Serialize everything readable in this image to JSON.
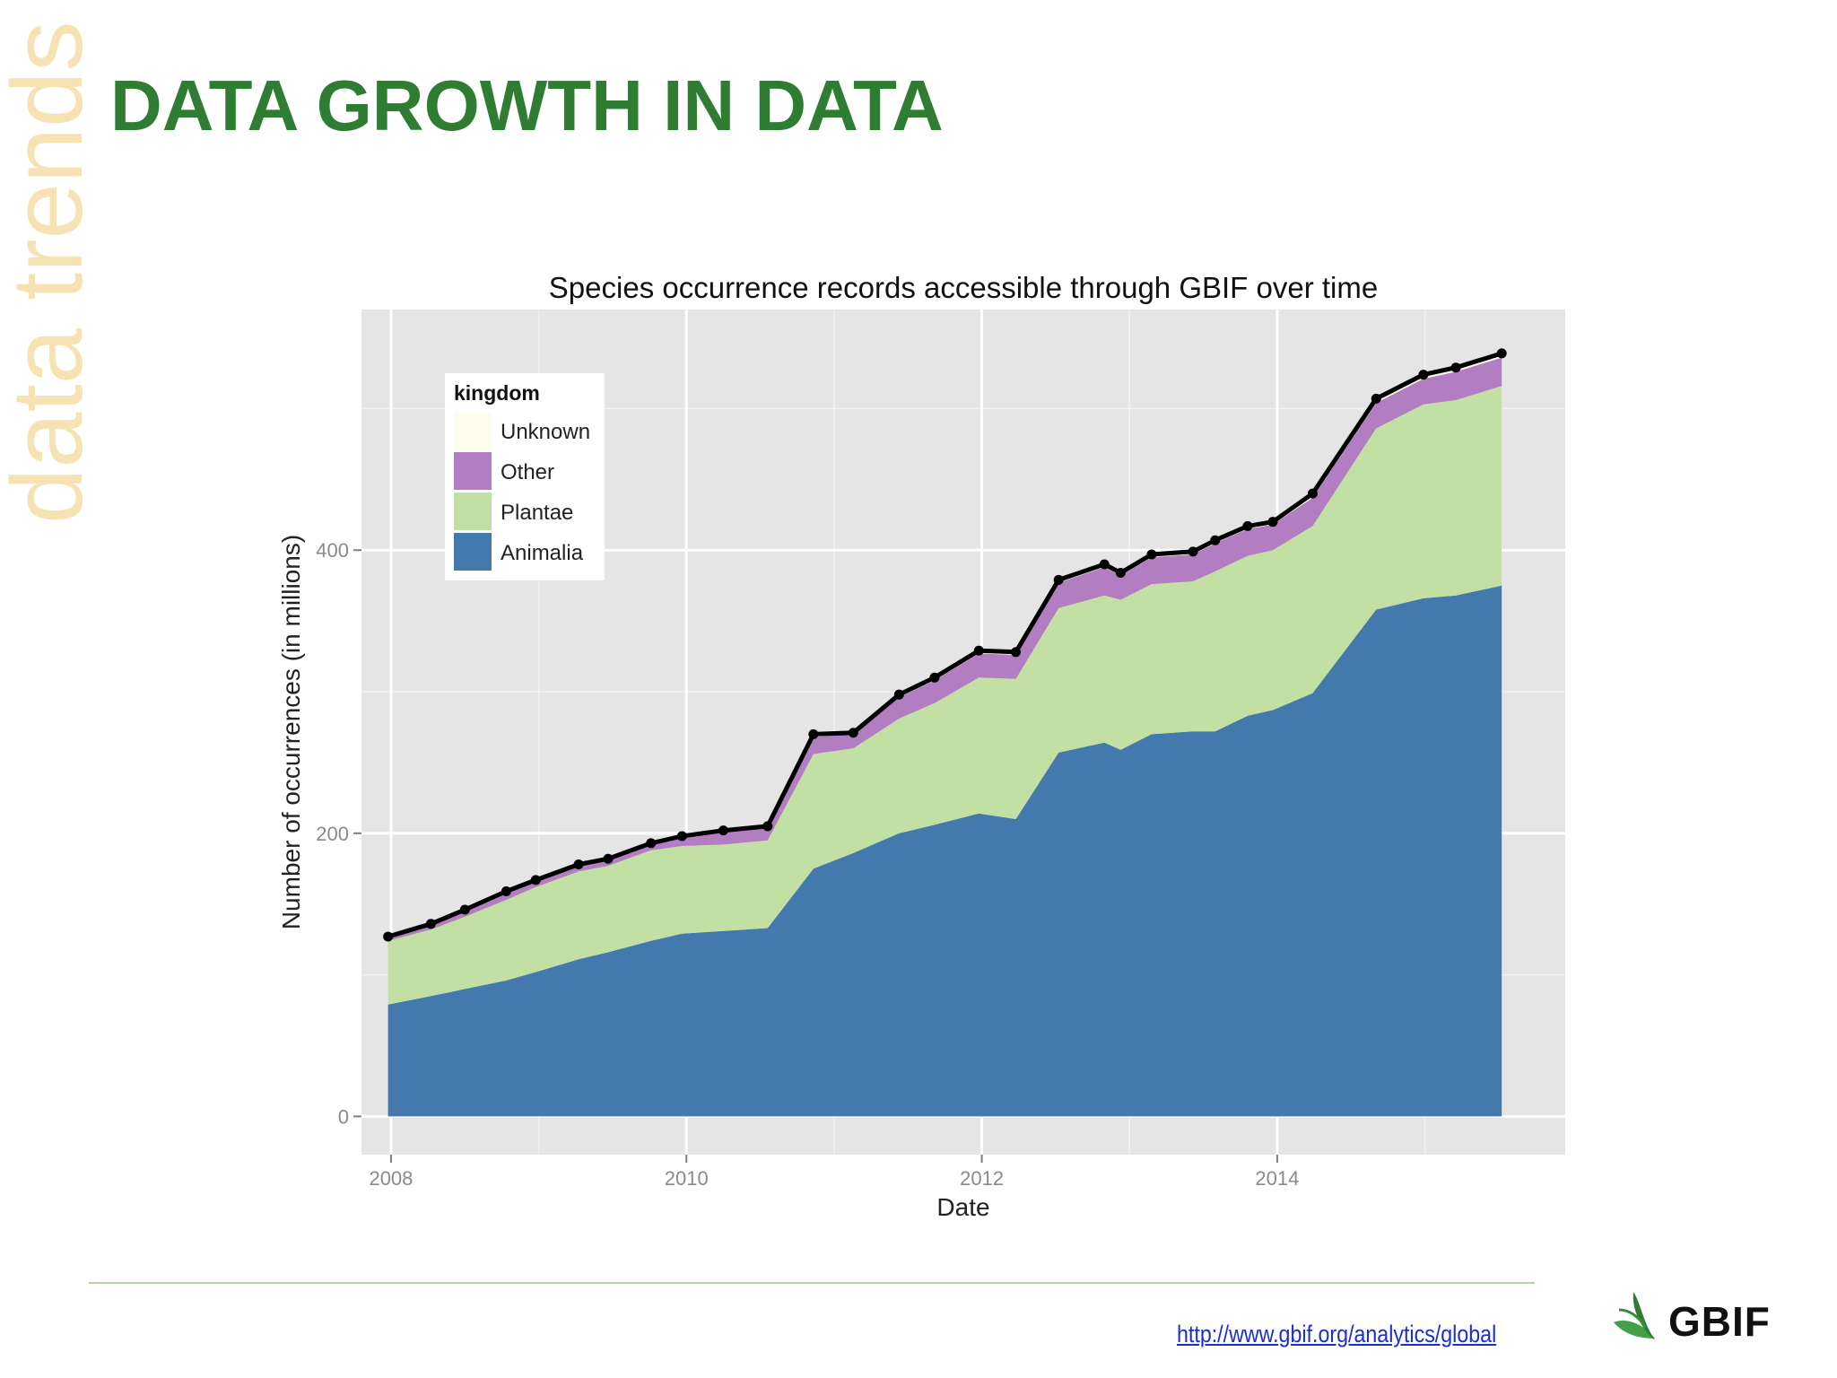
{
  "slide": {
    "side_label": "data trends",
    "title": "DATA GROWTH IN DATA",
    "source_link": "http://www.gbif.org/analytics/global",
    "logo_text": "GBIF"
  },
  "colors": {
    "title": "#2e7d32",
    "side_label": "#f7e2b3",
    "panel_bg": "#e5e5e5",
    "animalia": "#4479ad",
    "plantae": "#c2e0a3",
    "other": "#b27ec1",
    "unknown": "#fdfdee",
    "total_line": "#000000",
    "logo_leaf": "#4caf50"
  },
  "chart_data": {
    "type": "area",
    "title": "Species occurrence records accessible through GBIF over time",
    "xlabel": "Date",
    "ylabel": "Number of occurrences (in millions)",
    "xlim": [
      2007.8,
      2015.95
    ],
    "ylim": [
      -27,
      570
    ],
    "x_ticks": [
      2008,
      2010,
      2012,
      2014
    ],
    "y_ticks": [
      0,
      200,
      400
    ],
    "grid": true,
    "stacked": true,
    "legend": {
      "title": "kingdom",
      "position": "top-left",
      "entries": [
        "Unknown",
        "Other",
        "Plantae",
        "Animalia"
      ]
    },
    "x": [
      2007.98,
      2008.27,
      2008.5,
      2008.78,
      2008.98,
      2009.27,
      2009.47,
      2009.76,
      2009.97,
      2010.25,
      2010.55,
      2010.86,
      2011.13,
      2011.44,
      2011.68,
      2011.98,
      2012.23,
      2012.52,
      2012.83,
      2012.94,
      2013.15,
      2013.43,
      2013.58,
      2013.8,
      2013.97,
      2014.24,
      2014.67,
      2014.99,
      2015.21,
      2015.52
    ],
    "series": [
      {
        "name": "Animalia",
        "values": [
          79,
          85,
          90,
          96,
          102,
          111,
          116,
          124,
          129,
          131,
          133,
          175,
          186,
          200,
          206,
          214,
          210,
          257,
          264,
          259,
          270,
          272,
          272,
          283,
          287,
          299,
          358,
          366,
          368,
          375
        ]
      },
      {
        "name": "Plantae",
        "values": [
          45,
          47,
          51,
          57,
          60,
          62,
          61,
          64,
          62,
          61,
          62,
          81,
          74,
          81,
          86,
          96,
          99,
          102,
          104,
          106,
          106,
          106,
          113,
          113,
          113,
          118,
          128,
          137,
          138,
          141
        ]
      },
      {
        "name": "Other",
        "values": [
          2,
          3,
          4,
          5,
          4,
          4,
          4,
          4,
          6,
          9,
          9,
          12,
          10,
          15,
          16,
          17,
          17,
          18,
          20,
          17,
          19,
          19,
          20,
          19,
          18,
          20,
          18,
          18,
          20,
          20
        ]
      },
      {
        "name": "Unknown",
        "values": [
          1,
          1,
          1,
          1,
          1,
          1,
          1,
          1,
          1,
          1,
          1,
          2,
          1,
          2,
          2,
          2,
          2,
          2,
          2,
          2,
          2,
          2,
          2,
          2,
          2,
          3,
          3,
          3,
          3,
          3
        ]
      }
    ],
    "total": [
      127,
      136,
      146,
      159,
      167,
      178,
      182,
      193,
      198,
      202,
      205,
      270,
      271,
      298,
      310,
      329,
      328,
      379,
      390,
      384,
      397,
      399,
      407,
      417,
      420,
      440,
      507,
      524,
      529,
      539
    ]
  }
}
